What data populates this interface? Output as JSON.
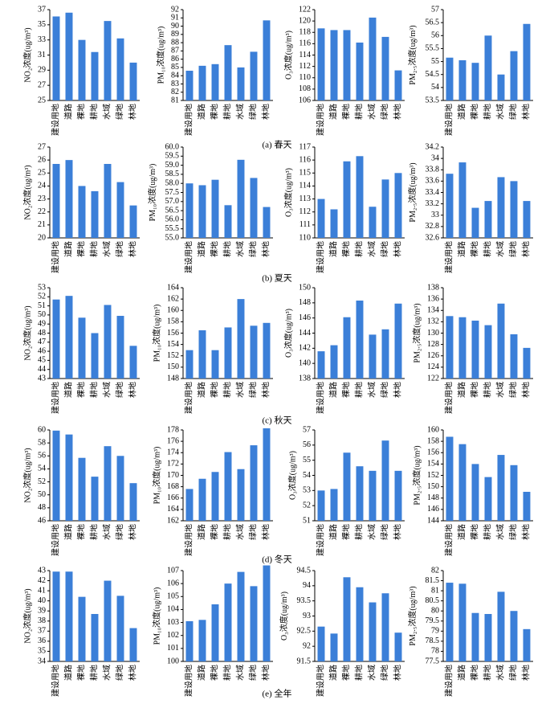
{
  "captions": [
    "(a) 春天",
    "(b) 夏天",
    "(c) 秋天",
    "(d) 冬天",
    "(e) 全年"
  ],
  "chart_data": [
    {
      "type": "bar",
      "ylabel": "NO₂浓度(ug/m³)",
      "categories": [
        "建设用地",
        "道路",
        "裸地",
        "耕地",
        "水域",
        "绿地",
        "林地"
      ],
      "values": [
        36.1,
        36.6,
        33.0,
        31.4,
        35.5,
        33.2,
        30.0
      ],
      "color": "#3b7fd8",
      "ylim": [
        25,
        37
      ],
      "yticks": [
        25,
        27,
        29,
        31,
        33,
        35,
        37
      ]
    },
    {
      "type": "bar",
      "ylabel": "PM₁₀浓度(ug/m³)",
      "categories": [
        "建设用地",
        "道路",
        "裸地",
        "耕地",
        "水域",
        "绿地",
        "林地"
      ],
      "values": [
        84.6,
        85.2,
        85.4,
        87.7,
        85.0,
        86.9,
        90.7
      ],
      "color": "#3b7fd8",
      "ylim": [
        81,
        92
      ],
      "yticks": [
        81,
        82,
        83,
        84,
        85,
        86,
        87,
        88,
        89,
        90,
        91,
        92
      ]
    },
    {
      "type": "bar",
      "ylabel": "O₃浓度(ug/m³)",
      "categories": [
        "建设用地",
        "道路",
        "裸地",
        "耕地",
        "水域",
        "绿地",
        "林地"
      ],
      "values": [
        118.7,
        118.4,
        118.4,
        116.2,
        120.6,
        117.2,
        111.3
      ],
      "color": "#3b7fd8",
      "ylim": [
        106,
        122
      ],
      "yticks": [
        106,
        108,
        110,
        112,
        114,
        116,
        118,
        120,
        122
      ]
    },
    {
      "type": "bar",
      "ylabel": "PM₂.₅浓度(ug/m³)",
      "categories": [
        "建设用地",
        "道路",
        "裸地",
        "耕地",
        "水域",
        "绿地",
        "林地"
      ],
      "values": [
        55.15,
        55.05,
        54.95,
        56.0,
        54.5,
        55.4,
        56.45
      ],
      "color": "#3b7fd8",
      "ylim": [
        53.5,
        57
      ],
      "yticks": [
        53.5,
        54,
        54.5,
        55,
        55.5,
        56,
        56.5,
        57
      ]
    },
    {
      "type": "bar",
      "ylabel": "NO₂浓度(ug/m³)",
      "categories": [
        "建设用地",
        "道路",
        "裸地",
        "耕地",
        "水域",
        "绿地",
        "林地"
      ],
      "values": [
        25.7,
        26.0,
        24.0,
        23.6,
        25.7,
        24.3,
        22.5
      ],
      "color": "#3b7fd8",
      "ylim": [
        20,
        27
      ],
      "yticks": [
        20,
        21,
        22,
        23,
        24,
        25,
        26,
        27
      ]
    },
    {
      "type": "bar",
      "ylabel": "PM₁₀浓度(ug/m³)",
      "categories": [
        "建设用地",
        "道路",
        "裸地",
        "耕地",
        "水域",
        "绿地",
        "林地"
      ],
      "values": [
        58.0,
        57.9,
        58.2,
        56.8,
        59.3,
        58.3,
        56.7
      ],
      "color": "#3b7fd8",
      "ylim": [
        55,
        60
      ],
      "yticks": [
        {
          "value": 55,
          "label": "55.0"
        },
        55.5,
        {
          "value": 56,
          "label": "56.0"
        },
        56.5,
        {
          "value": 57,
          "label": "57.0"
        },
        57.5,
        {
          "value": 58,
          "label": "58.0"
        },
        58.5,
        {
          "value": 59,
          "label": "59.0"
        },
        59.5,
        {
          "value": 60,
          "label": "60.0"
        }
      ]
    },
    {
      "type": "bar",
      "ylabel": "O₃浓度(ug/m³)",
      "categories": [
        "建设用地",
        "道路",
        "裸地",
        "耕地",
        "水域",
        "绿地",
        "林地"
      ],
      "values": [
        113.0,
        112.2,
        115.9,
        116.3,
        112.4,
        114.5,
        115.0
      ],
      "color": "#3b7fd8",
      "ylim": [
        110,
        117
      ],
      "yticks": [
        110,
        111,
        112,
        113,
        114,
        115,
        116,
        117
      ]
    },
    {
      "type": "bar",
      "ylabel": "PM₂.₅浓度(ug/m³)",
      "categories": [
        "建设用地",
        "道路",
        "裸地",
        "耕地",
        "水域",
        "绿地",
        "林地"
      ],
      "values": [
        33.73,
        33.93,
        33.13,
        33.25,
        33.67,
        33.6,
        33.25
      ],
      "color": "#3b7fd8",
      "ylim": [
        32.6,
        34.2
      ],
      "yticks": [
        32.6,
        32.8,
        33,
        33.2,
        33.4,
        33.6,
        33.8,
        34,
        34.2
      ]
    },
    {
      "type": "bar",
      "ylabel": "NO₂浓度(ug/m³)",
      "categories": [
        "建设用地",
        "道路",
        "裸地",
        "耕地",
        "水域",
        "绿地",
        "林地"
      ],
      "values": [
        51.7,
        52.1,
        49.7,
        48.0,
        51.1,
        49.9,
        46.6
      ],
      "color": "#3b7fd8",
      "ylim": [
        43,
        53
      ],
      "yticks": [
        43,
        44,
        45,
        46,
        47,
        48,
        49,
        50,
        51,
        52,
        53
      ]
    },
    {
      "type": "bar",
      "ylabel": "PM₁₀浓度(ug/m³)",
      "categories": [
        "建设用地",
        "道路",
        "裸地",
        "耕地",
        "水域",
        "绿地",
        "林地"
      ],
      "values": [
        153.0,
        156.5,
        153.0,
        157.0,
        162.0,
        157.3,
        157.8
      ],
      "color": "#3b7fd8",
      "ylim": [
        148,
        164
      ],
      "yticks": [
        148,
        150,
        152,
        154,
        156,
        158,
        160,
        162,
        164
      ]
    },
    {
      "type": "bar",
      "ylabel": "O₃浓度(ug/m³)",
      "categories": [
        "建设用地",
        "道路",
        "裸地",
        "耕地",
        "水域",
        "绿地",
        "林地"
      ],
      "values": [
        141.6,
        142.4,
        146.1,
        148.3,
        143.8,
        144.5,
        147.9
      ],
      "color": "#3b7fd8",
      "ylim": [
        138,
        150
      ],
      "yticks": [
        138,
        140,
        142,
        144,
        146,
        148,
        150
      ]
    },
    {
      "type": "bar",
      "ylabel": "PM₂.₅浓度(ug/m³)",
      "categories": [
        "建设用地",
        "道路",
        "裸地",
        "耕地",
        "水域",
        "绿地",
        "林地"
      ],
      "values": [
        133.0,
        132.8,
        132.2,
        131.4,
        135.2,
        129.8,
        127.4
      ],
      "color": "#3b7fd8",
      "ylim": [
        122,
        138
      ],
      "yticks": [
        122,
        124,
        126,
        128,
        130,
        132,
        134,
        136,
        138
      ]
    },
    {
      "type": "bar",
      "ylabel": "NO₂浓度(ug/m³)",
      "categories": [
        "建设用地",
        "道路",
        "裸地",
        "耕地",
        "水域",
        "绿地",
        "林地"
      ],
      "values": [
        59.9,
        59.3,
        55.7,
        52.8,
        57.5,
        56.0,
        51.8
      ],
      "color": "#3b7fd8",
      "ylim": [
        46,
        60
      ],
      "yticks": [
        46,
        48,
        50,
        52,
        54,
        56,
        58,
        60
      ]
    },
    {
      "type": "bar",
      "ylabel": "PM₁₀浓度(ug/m³)",
      "categories": [
        "建设用地",
        "道路",
        "裸地",
        "耕地",
        "水域",
        "绿地",
        "林地"
      ],
      "values": [
        167.6,
        169.4,
        170.6,
        174.1,
        171.1,
        175.3,
        178.3
      ],
      "color": "#3b7fd8",
      "ylim": [
        162,
        178
      ],
      "yticks": [
        162,
        164,
        166,
        168,
        170,
        172,
        174,
        176,
        178
      ]
    },
    {
      "type": "bar",
      "ylabel": "O₃浓度(ug/m³)",
      "categories": [
        "建设用地",
        "道路",
        "裸地",
        "耕地",
        "水域",
        "绿地",
        "林地"
      ],
      "values": [
        53.0,
        53.1,
        55.5,
        54.6,
        54.3,
        56.3,
        54.3
      ],
      "color": "#3b7fd8",
      "ylim": [
        51,
        57
      ],
      "yticks": [
        51,
        52,
        53,
        54,
        55,
        56,
        57
      ]
    },
    {
      "type": "bar",
      "ylabel": "PM₂.₅浓度(ug/m³)",
      "categories": [
        "建设用地",
        "道路",
        "裸地",
        "耕地",
        "水域",
        "绿地",
        "林地"
      ],
      "values": [
        158.8,
        157.5,
        154.0,
        151.7,
        155.6,
        153.8,
        149.1
      ],
      "color": "#3b7fd8",
      "ylim": [
        144,
        160
      ],
      "yticks": [
        144,
        146,
        148,
        150,
        152,
        154,
        156,
        158,
        160
      ]
    },
    {
      "type": "bar",
      "ylabel": "NO₂浓度(ug/m³)",
      "categories": [
        "建设用地",
        "道路",
        "裸地",
        "耕地",
        "水域",
        "绿地",
        "林地"
      ],
      "values": [
        42.9,
        42.9,
        40.4,
        38.7,
        42.0,
        40.5,
        37.3
      ],
      "color": "#3b7fd8",
      "ylim": [
        34,
        43
      ],
      "yticks": [
        34,
        35,
        36,
        37,
        38,
        39,
        40,
        41,
        42,
        43
      ]
    },
    {
      "type": "bar",
      "ylabel": "PM₁₀浓度(ug/m³)",
      "categories": [
        "建设用地",
        "道路",
        "裸地",
        "耕地",
        "水域",
        "绿地",
        "林地"
      ],
      "values": [
        103.1,
        103.2,
        104.4,
        106.0,
        106.9,
        105.8,
        107.4
      ],
      "color": "#3b7fd8",
      "ylim": [
        100,
        107
      ],
      "yticks": [
        100,
        101,
        102,
        103,
        104,
        105,
        106,
        107
      ]
    },
    {
      "type": "bar",
      "ylabel": "O₃浓度(ug/m³)",
      "categories": [
        "建设用地",
        "道路",
        "裸地",
        "耕地",
        "水域",
        "绿地",
        "林地"
      ],
      "values": [
        92.65,
        92.42,
        94.28,
        93.95,
        93.45,
        93.75,
        92.45
      ],
      "color": "#3b7fd8",
      "ylim": [
        91.5,
        94.5
      ],
      "yticks": [
        91.5,
        92,
        92.5,
        93,
        93.5,
        94,
        94.5
      ]
    },
    {
      "type": "bar",
      "ylabel": "PM₂.₅浓度(ug/m³)",
      "categories": [
        "建设用地",
        "道路",
        "裸地",
        "耕地",
        "水域",
        "绿地",
        "林地"
      ],
      "values": [
        81.4,
        81.35,
        79.9,
        79.85,
        80.95,
        80.0,
        79.1
      ],
      "color": "#3b7fd8",
      "ylim": [
        77.5,
        82
      ],
      "yticks": [
        77.5,
        78,
        78.5,
        79,
        79.5,
        80,
        80.5,
        81,
        81.5,
        82
      ]
    }
  ]
}
